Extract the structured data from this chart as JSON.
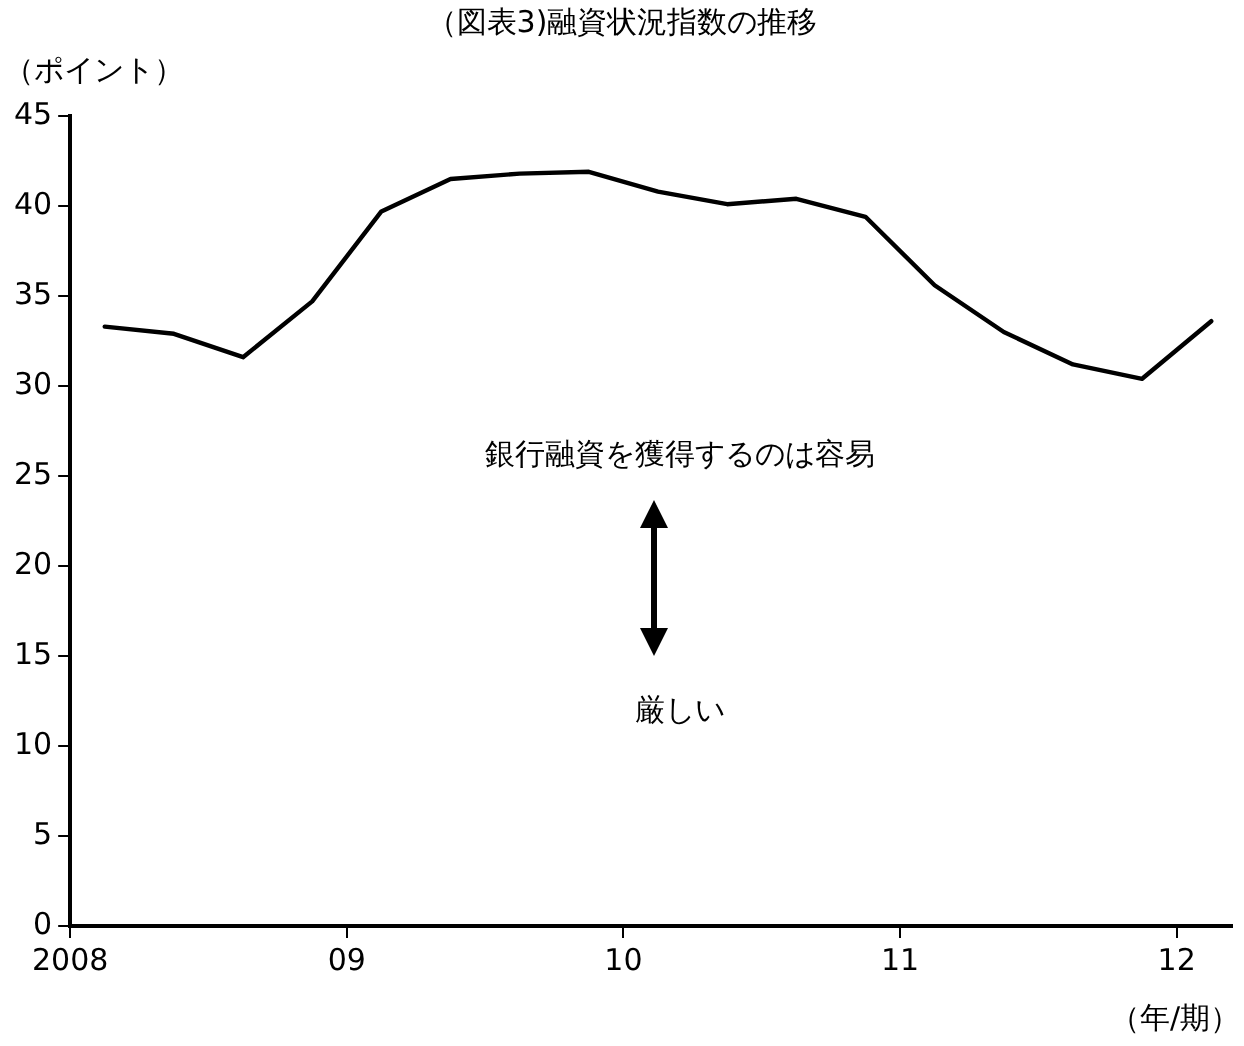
{
  "chart_data": {
    "type": "line",
    "title": "（図表3)融資状況指数の推移",
    "ylabel": "（ポイント）",
    "xlabel": "（年/期）",
    "x": [
      2008.125,
      2008.375,
      2008.625,
      2008.875,
      2009.125,
      2009.375,
      2009.625,
      2009.875,
      2010.125,
      2010.375,
      2010.625,
      2010.875,
      2011.125,
      2011.375,
      2011.625,
      2011.875,
      2012.125
    ],
    "series": [
      {
        "color": "#000000",
        "values": [
          33.3,
          32.9,
          31.6,
          34.7,
          39.7,
          41.5,
          41.8,
          41.9,
          40.8,
          40.1,
          40.4,
          39.4,
          35.6,
          33.0,
          31.2,
          30.4,
          33.6
        ]
      }
    ],
    "xlim": [
      2008,
      2012.2
    ],
    "xticks": [
      {
        "value": 2008,
        "label": "2008"
      },
      {
        "value": 2009,
        "label": "09"
      },
      {
        "value": 2010,
        "label": "10"
      },
      {
        "value": 2011,
        "label": "11"
      },
      {
        "value": 2012,
        "label": "12"
      }
    ],
    "ylim": [
      0,
      45
    ],
    "yticks": [
      0,
      5,
      10,
      15,
      20,
      25,
      30,
      35,
      40,
      45
    ],
    "annotations": [
      "銀行融資を獲得するのは容易",
      "厳しい"
    ],
    "grid": false,
    "legend": false,
    "marker": "none",
    "line_style": "solid"
  }
}
